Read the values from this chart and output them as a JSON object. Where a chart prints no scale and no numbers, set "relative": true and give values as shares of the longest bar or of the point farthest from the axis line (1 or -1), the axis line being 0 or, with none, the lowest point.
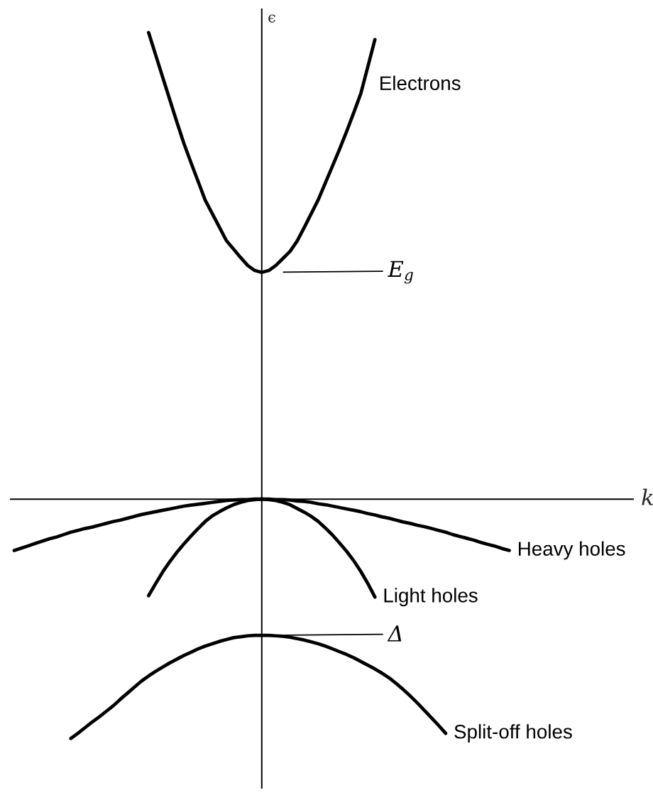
{
  "chart_data": {
    "type": "line",
    "relative": true,
    "xlabel": "k",
    "ylabel": "ϵ",
    "categories": [
      null,
      null,
      null,
      null,
      null,
      null,
      null,
      null,
      null,
      null,
      null,
      null,
      null,
      null,
      null,
      null,
      null,
      null,
      null,
      null,
      null,
      null,
      null,
      null,
      null,
      null,
      null,
      null,
      null,
      null,
      null,
      null,
      null,
      null,
      null,
      null,
      null,
      null,
      null,
      null,
      null,
      null,
      null,
      null,
      null,
      null,
      null,
      null,
      null,
      null,
      null,
      null,
      null,
      null,
      null,
      null,
      null,
      null,
      null,
      null,
      null,
      null,
      null,
      null,
      null,
      null,
      null,
      null,
      null,
      null,
      null,
      null,
      null,
      null,
      null,
      null,
      null,
      null,
      null,
      null,
      null,
      null,
      null,
      null,
      null,
      null,
      null,
      null
    ],
    "series": [
      {
        "name": "Electrons",
        "color": "#000000",
        "values": [
          null,
          null,
          null,
          null,
          null,
          null,
          null,
          null,
          null,
          null,
          null,
          null,
          null,
          null,
          null,
          null,
          null,
          null,
          null,
          1.0,
          0.952,
          0.904,
          0.856,
          0.808,
          0.762,
          0.721,
          0.681,
          0.641,
          0.612,
          0.583,
          0.554,
          0.536,
          0.518,
          0.501,
          0.49,
          0.486,
          0.49,
          0.501,
          0.516,
          0.531,
          0.553,
          0.582,
          0.612,
          0.642,
          0.678,
          0.714,
          0.75,
          0.788,
          0.828,
          0.869,
          0.927,
          0.985,
          null,
          null,
          null,
          null,
          null,
          null,
          null,
          null,
          null,
          null,
          null,
          null,
          null,
          null,
          null,
          null,
          null,
          null,
          null,
          null,
          null,
          null,
          null,
          null,
          null,
          null,
          null,
          null,
          null,
          null,
          null,
          null,
          null,
          null,
          null,
          null
        ]
      },
      {
        "name": "Heavy holes",
        "color": "#000000",
        "values": [
          -0.11,
          -0.105,
          -0.1,
          -0.095,
          -0.09,
          -0.085,
          -0.081,
          -0.076,
          -0.071,
          -0.067,
          -0.063,
          -0.06,
          -0.056,
          -0.052,
          -0.048,
          -0.045,
          -0.041,
          -0.037,
          -0.033,
          -0.03,
          -0.027,
          -0.024,
          -0.021,
          -0.018,
          -0.015,
          -0.013,
          -0.011,
          -0.009,
          -0.007,
          -0.005,
          -0.003,
          -0.002,
          -0.001,
          -0.001,
          0,
          0,
          0,
          -0.001,
          -0.001,
          -0.002,
          -0.004,
          -0.005,
          -0.007,
          -0.01,
          -0.012,
          -0.015,
          -0.018,
          -0.021,
          -0.024,
          -0.027,
          -0.031,
          -0.034,
          -0.038,
          -0.041,
          -0.045,
          -0.049,
          -0.052,
          -0.056,
          -0.059,
          -0.063,
          -0.067,
          -0.071,
          -0.076,
          -0.08,
          -0.084,
          -0.088,
          -0.093,
          -0.097,
          -0.101,
          -0.106,
          -0.11,
          null,
          null,
          null,
          null,
          null,
          null,
          null,
          null,
          null,
          null,
          null,
          null,
          null,
          null,
          null,
          null,
          null
        ]
      },
      {
        "name": "Light holes",
        "color": "#000000",
        "values": [
          null,
          null,
          null,
          null,
          null,
          null,
          null,
          null,
          null,
          null,
          null,
          null,
          null,
          null,
          null,
          null,
          null,
          null,
          null,
          -0.207,
          -0.181,
          -0.156,
          -0.134,
          -0.114,
          -0.096,
          -0.079,
          -0.063,
          -0.048,
          -0.036,
          -0.027,
          -0.019,
          -0.012,
          -0.007,
          -0.003,
          -0.001,
          0,
          -0.001,
          -0.003,
          -0.007,
          -0.012,
          -0.02,
          -0.028,
          -0.037,
          -0.048,
          -0.062,
          -0.077,
          -0.094,
          -0.112,
          -0.132,
          -0.155,
          -0.181,
          -0.21,
          null,
          null,
          null,
          null,
          null,
          null,
          null,
          null,
          null,
          null,
          null,
          null,
          null,
          null,
          null,
          null,
          null,
          null,
          null,
          null,
          null,
          null,
          null,
          null,
          null,
          null,
          null,
          null,
          null,
          null,
          null,
          null,
          null,
          null,
          null,
          null
        ]
      },
      {
        "name": "Split-off holes",
        "color": "#000000",
        "values": [
          null,
          null,
          null,
          null,
          null,
          null,
          null,
          null,
          -0.513,
          -0.502,
          -0.49,
          -0.478,
          -0.467,
          -0.455,
          -0.443,
          -0.429,
          -0.416,
          -0.403,
          -0.39,
          -0.379,
          -0.369,
          -0.36,
          -0.351,
          -0.343,
          -0.335,
          -0.328,
          -0.321,
          -0.315,
          -0.31,
          -0.305,
          -0.301,
          -0.297,
          -0.295,
          -0.293,
          -0.292,
          -0.292,
          -0.292,
          -0.293,
          -0.294,
          -0.296,
          -0.299,
          -0.302,
          -0.306,
          -0.31,
          -0.315,
          -0.321,
          -0.327,
          -0.333,
          -0.34,
          -0.348,
          -0.356,
          -0.364,
          -0.373,
          -0.383,
          -0.395,
          -0.408,
          -0.422,
          -0.437,
          -0.453,
          -0.469,
          -0.485,
          -0.502,
          null,
          null,
          null,
          null,
          null,
          null,
          null,
          null,
          null,
          null,
          null,
          null,
          null,
          null,
          null,
          null,
          null,
          null,
          null,
          null,
          null,
          null,
          null,
          null,
          null,
          null
        ]
      }
    ],
    "annotations": [
      "E$_{g}$",
      "Δ"
    ]
  }
}
